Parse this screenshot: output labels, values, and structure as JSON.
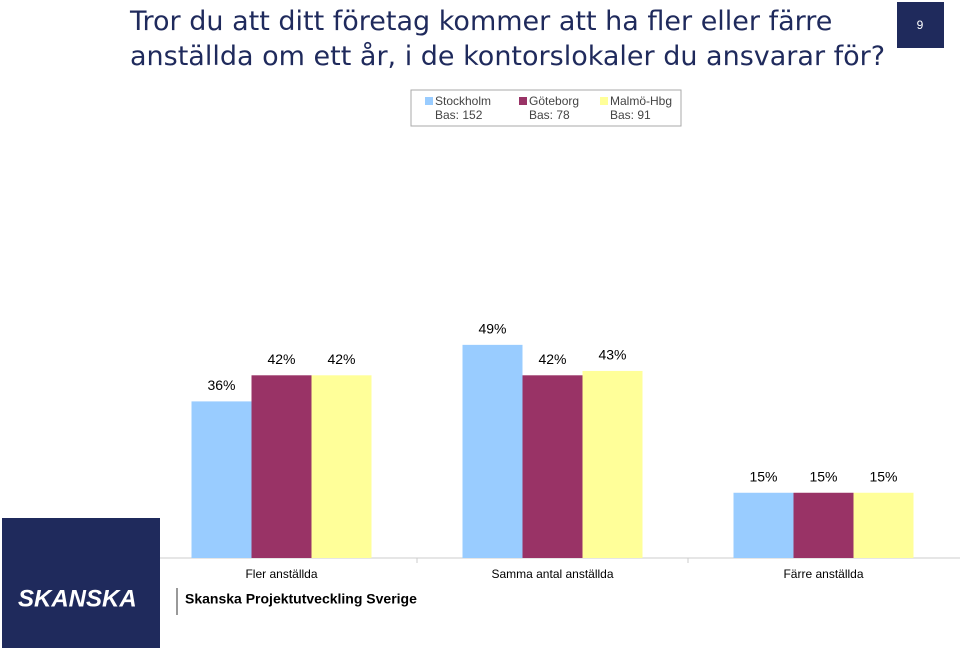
{
  "page_number": "9",
  "logo": "SKANSKA",
  "footer": "Skanska Projektutveckling Sverige",
  "chart_data": {
    "type": "bar",
    "title": "Tror du att ditt företag kommer att ha fler eller färre anställda om ett år, i de kontorslokaler du ansvarar för?",
    "categories": [
      "Fler anställda",
      "Samma antal anställda",
      "Färre anställda"
    ],
    "series": [
      {
        "name": "Stockholm",
        "base": "Bas: 152",
        "color": "#99ccff",
        "values": [
          36,
          49,
          15
        ],
        "value_labels": [
          "36%",
          "49%",
          "15%"
        ]
      },
      {
        "name": "Göteborg",
        "base": "Bas: 78",
        "color": "#993366",
        "values": [
          42,
          42,
          15
        ],
        "value_labels": [
          "42%",
          "42%",
          "15%"
        ]
      },
      {
        "name": "Malmö-Hbg",
        "base": "Bas: 91",
        "color": "#ffff99",
        "values": [
          42,
          43,
          15
        ],
        "value_labels": [
          "42%",
          "43%",
          "15%"
        ]
      }
    ]
  }
}
